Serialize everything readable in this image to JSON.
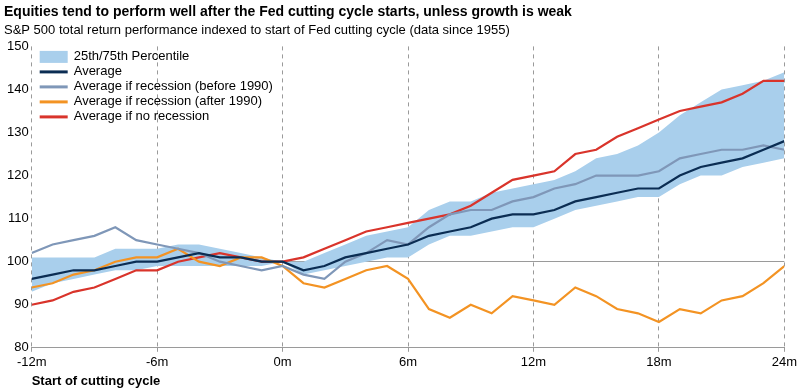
{
  "chart_data": {
    "type": "line",
    "title": "Equities tend to perform well after the Fed cutting cycle starts, unless growth is weak",
    "subtitle": "S&P 500 total return performance indexed to start of Fed cutting cycle (data since 1955)",
    "x_label": "Start of cutting cycle",
    "x": [
      -12,
      -11,
      -10,
      -9,
      -8,
      -7,
      -6,
      -5,
      -4,
      -3,
      -2,
      -1,
      0,
      1,
      2,
      3,
      4,
      5,
      6,
      7,
      8,
      9,
      10,
      11,
      12,
      13,
      14,
      15,
      16,
      17,
      18,
      19,
      20,
      21,
      22,
      23,
      24
    ],
    "xlim": [
      -12,
      24
    ],
    "xticks": [
      {
        "value": -12,
        "label": "-12m"
      },
      {
        "value": -6,
        "label": "-6m"
      },
      {
        "value": 0,
        "label": "0m"
      },
      {
        "value": 6,
        "label": "6m"
      },
      {
        "value": 12,
        "label": "12m"
      },
      {
        "value": 18,
        "label": "18m"
      },
      {
        "value": 24,
        "label": "24m"
      }
    ],
    "ylim": [
      80,
      150
    ],
    "yticks": [
      80,
      90,
      100,
      110,
      120,
      130,
      140,
      150
    ],
    "grid": "x",
    "reference_y": 100,
    "legend": "upper left",
    "series": [
      {
        "name": "25th/75th Percentile",
        "type": "band",
        "color": "#a9cfec",
        "lower": [
          93,
          95,
          96,
          97,
          98,
          98,
          99,
          99,
          99,
          99,
          99,
          99,
          100,
          97,
          98,
          99,
          100,
          101,
          101,
          104,
          106,
          106,
          107,
          108,
          108,
          110,
          112,
          113,
          114,
          115,
          115,
          118,
          120,
          120,
          122,
          123,
          124
        ],
        "upper": [
          101,
          101,
          101,
          101,
          103,
          103,
          103,
          104,
          104,
          103,
          102,
          101,
          100,
          100,
          102,
          104,
          106,
          107,
          108,
          112,
          114,
          114,
          116,
          117,
          118,
          119,
          121,
          124,
          125,
          127,
          130,
          134,
          137,
          140,
          141,
          142,
          144
        ]
      },
      {
        "name": "Average",
        "type": "line",
        "color": "#0b2d53",
        "values": [
          96,
          97,
          98,
          98,
          99,
          100,
          100,
          101,
          102,
          101,
          101,
          100,
          100,
          98,
          99,
          101,
          102,
          103,
          104,
          106,
          107,
          108,
          110,
          111,
          111,
          112,
          114,
          115,
          116,
          117,
          117,
          120,
          122,
          123,
          124,
          126,
          128
        ]
      },
      {
        "name": "Average if recession (before 1990)",
        "type": "line",
        "color": "#7f97b8",
        "values": [
          102,
          104,
          105,
          106,
          108,
          105,
          104,
          103,
          102,
          100,
          99,
          98,
          99,
          97,
          96,
          100,
          102,
          105,
          104,
          108,
          111,
          112,
          112,
          114,
          115,
          117,
          118,
          120,
          120,
          120,
          121,
          124,
          125,
          126,
          126,
          127,
          126
        ]
      },
      {
        "name": "Average if recession (after 1990)",
        "type": "line",
        "color": "#f39323",
        "values": [
          94,
          95,
          97,
          98,
          100,
          101,
          101,
          103,
          100,
          99,
          101,
          101,
          99,
          95,
          94,
          96,
          98,
          99,
          96,
          89,
          87,
          90,
          88,
          92,
          91,
          90,
          94,
          92,
          89,
          88,
          86,
          89,
          88,
          91,
          92,
          95,
          99
        ]
      },
      {
        "name": "Average if no recession",
        "type": "line",
        "color": "#d9342b",
        "values": [
          90,
          91,
          93,
          94,
          96,
          98,
          98,
          100,
          101,
          102,
          101,
          100,
          100,
          101,
          103,
          105,
          107,
          108,
          109,
          110,
          111,
          113,
          116,
          119,
          120,
          121,
          125,
          126,
          129,
          131,
          133,
          135,
          136,
          137,
          139,
          142,
          142
        ]
      }
    ]
  }
}
